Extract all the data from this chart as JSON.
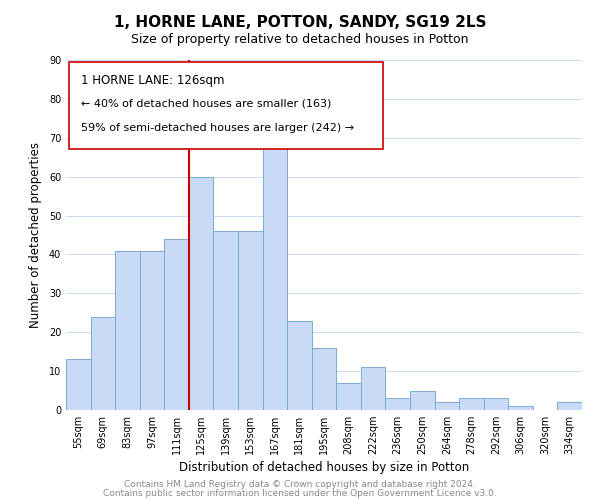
{
  "title": "1, HORNE LANE, POTTON, SANDY, SG19 2LS",
  "subtitle": "Size of property relative to detached houses in Potton",
  "xlabel": "Distribution of detached houses by size in Potton",
  "ylabel": "Number of detached properties",
  "bar_labels": [
    "55sqm",
    "69sqm",
    "83sqm",
    "97sqm",
    "111sqm",
    "125sqm",
    "139sqm",
    "153sqm",
    "167sqm",
    "181sqm",
    "195sqm",
    "208sqm",
    "222sqm",
    "236sqm",
    "250sqm",
    "264sqm",
    "278sqm",
    "292sqm",
    "306sqm",
    "320sqm",
    "334sqm"
  ],
  "bar_values": [
    13,
    24,
    41,
    41,
    44,
    60,
    46,
    46,
    68,
    23,
    16,
    7,
    11,
    3,
    5,
    2,
    3,
    3,
    1,
    0,
    2
  ],
  "bar_color": "#c8daf5",
  "bar_edge_color": "#7aacd6",
  "vline_x_index": 5,
  "vline_color": "#cc0000",
  "annotation_title": "1 HORNE LANE: 126sqm",
  "annotation_line1": "← 40% of detached houses are smaller (163)",
  "annotation_line2": "59% of semi-detached houses are larger (242) →",
  "annotation_box_color": "#ffffff",
  "annotation_box_edge": "#cc0000",
  "ylim": [
    0,
    90
  ],
  "yticks": [
    0,
    10,
    20,
    30,
    40,
    50,
    60,
    70,
    80,
    90
  ],
  "footer1": "Contains HM Land Registry data © Crown copyright and database right 2024.",
  "footer2": "Contains public sector information licensed under the Open Government Licence v3.0.",
  "background_color": "#ffffff",
  "grid_color": "#c8daf5",
  "title_fontsize": 11,
  "subtitle_fontsize": 9,
  "axis_label_fontsize": 8.5,
  "tick_fontsize": 7,
  "footer_fontsize": 6.5,
  "annotation_fontsize": 8,
  "annotation_title_fontsize": 8.5
}
